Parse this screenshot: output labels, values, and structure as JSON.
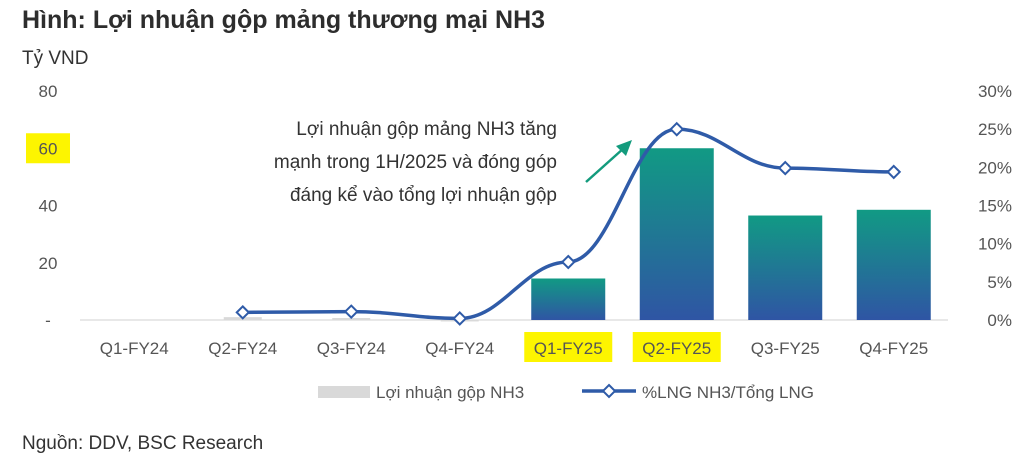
{
  "title": "Hình: Lợi nhuận gộp mảng thương mại NH3",
  "unit_label": "Tỷ VND",
  "source": "Nguồn: DDV, BSC Research",
  "chart_data": {
    "type": "bar",
    "categories": [
      "Q1-FY24",
      "Q2-FY24",
      "Q3-FY24",
      "Q4-FY24",
      "Q1-FY25",
      "Q2-FY25",
      "Q3-FY25",
      "Q4-FY25"
    ],
    "series": [
      {
        "name": "Lợi nhuận gộp NH3",
        "type": "bar",
        "axis": "left",
        "values": [
          0,
          1,
          0.7,
          0.2,
          14.5,
          60,
          36.5,
          38.5
        ]
      },
      {
        "name": "%LNG NH3/Tổng LNG",
        "type": "line",
        "axis": "right",
        "values": [
          null,
          1.0,
          1.1,
          0.2,
          7.6,
          25.0,
          19.9,
          19.4
        ]
      }
    ],
    "ylim": [
      0,
      80
    ],
    "y_ticks": [
      "-",
      "20",
      "40",
      "60",
      "80"
    ],
    "y2lim": [
      0,
      30
    ],
    "y2_ticks": [
      "0%",
      "5%",
      "10%",
      "15%",
      "20%",
      "25%",
      "30%"
    ],
    "highlighted_categories": [
      "Q1-FY25",
      "Q2-FY25"
    ],
    "highlighted_ticks": [
      "60"
    ],
    "annotation": [
      "Lợi nhuận gộp mảng NH3 tăng",
      "mạnh trong 1H/2025 và đóng góp",
      "đáng kể vào tổng lợi nhuận gộp"
    ],
    "legend_position": "bottom",
    "grid": false
  },
  "colors": {
    "bar_top": "#119a84",
    "bar_bottom": "#2f55a4",
    "bar_small": "#d9d9d9",
    "line": "#2f5ba8",
    "highlight": "#fdf500",
    "arrow": "#139b7d"
  }
}
